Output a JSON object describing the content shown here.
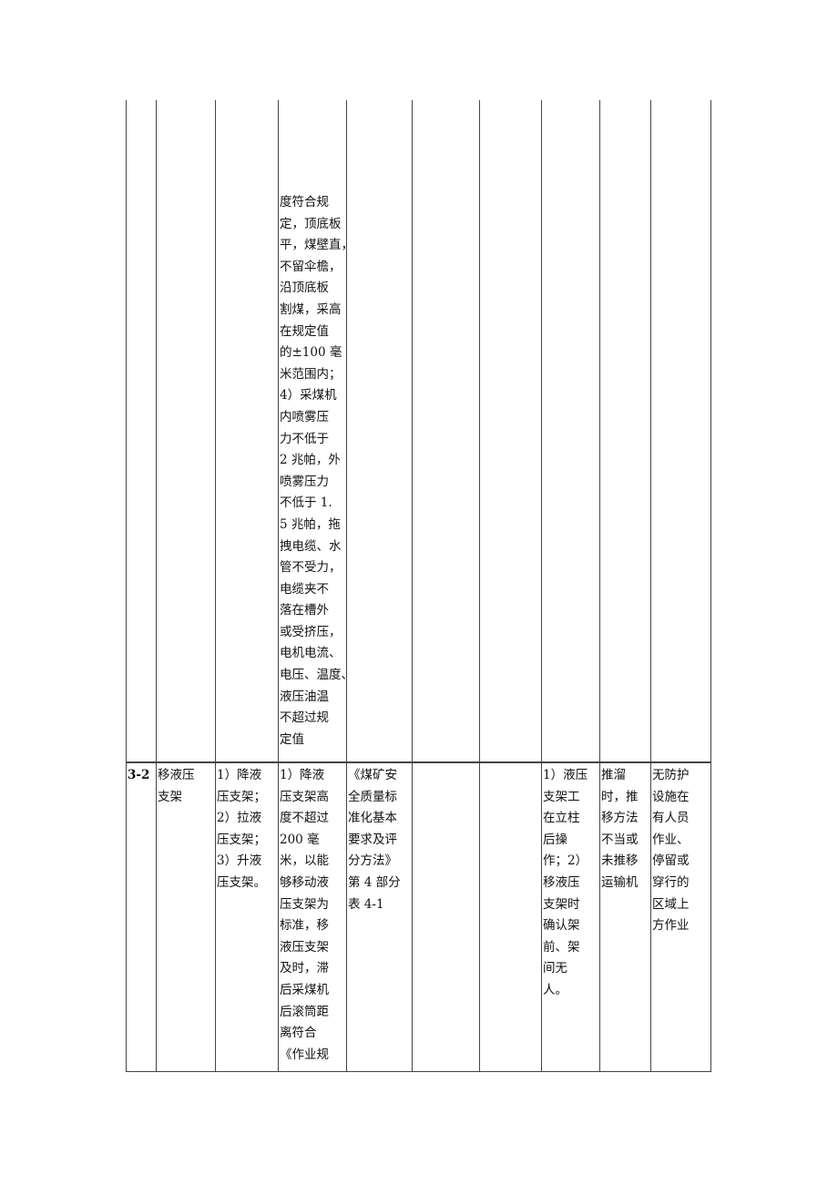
{
  "table": {
    "row1": {
      "standard_lines": [
        "度符合规",
        "定，顶底板",
        "平，煤壁直，",
        "不留伞檐，",
        "沿顶底板",
        "割煤，采高",
        "在规定值",
        "的±100 毫",
        "米范围内；",
        "4）采煤机",
        "内喷雾压",
        "力不低于",
        "2 兆帕，外",
        "喷雾压力",
        "不低于 1.",
        "5 兆帕，拖",
        "拽电缆、水",
        "管不受力，",
        "电缆夹不",
        "落在槽外",
        "或受挤压，",
        "电机电流、",
        "电压、温度、",
        "液压油温",
        "不超过规",
        "定值"
      ]
    },
    "row2": {
      "id": "3-2",
      "task_lines": [
        "移液压",
        "支架"
      ],
      "steps_lines": [
        "1）降液",
        "压支架；",
        "2）拉液",
        "压支架；",
        "3）升液",
        "压支架。"
      ],
      "standard_lines": [
        "1）降液",
        "压支架高",
        "度不超过",
        "200 毫",
        "米，以能",
        "够移动液",
        "压支架为",
        "标准，移",
        "液压支架",
        "及时，滞",
        "后采煤机",
        "后滚筒距",
        "离符合",
        "《作业规"
      ],
      "basis_lines": [
        "《煤矿安",
        "全质量标",
        "准化基本",
        "要求及评",
        "分方法》",
        "第 4 部分",
        "表 4-1"
      ],
      "measures_lines": [
        "1）液压",
        "支架工",
        "在立柱",
        "后操",
        "作；2）",
        "移液压",
        "支架时",
        "确认架",
        "前、架",
        "间无",
        "人。"
      ],
      "hazard_lines": [
        "推溜",
        "时，推",
        "移方法",
        "不当或",
        "未推移",
        "运输机"
      ],
      "risk_lines": [
        "无防护",
        "设施在",
        "有人员",
        "作业、",
        "停留或",
        "穿行的",
        "区域上",
        "方作业"
      ]
    }
  }
}
